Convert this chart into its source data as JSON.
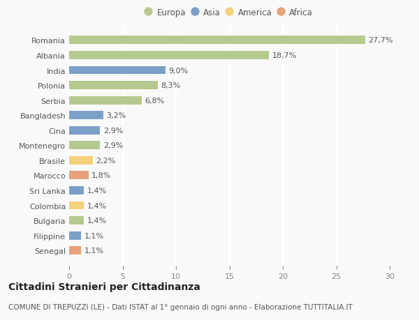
{
  "categories": [
    "Romania",
    "Albania",
    "India",
    "Polonia",
    "Serbia",
    "Bangladesh",
    "Cina",
    "Montenegro",
    "Brasile",
    "Marocco",
    "Sri Lanka",
    "Colombia",
    "Bulgaria",
    "Filippine",
    "Senegal"
  ],
  "values": [
    27.7,
    18.7,
    9.0,
    8.3,
    6.8,
    3.2,
    2.9,
    2.9,
    2.2,
    1.8,
    1.4,
    1.4,
    1.4,
    1.1,
    1.1
  ],
  "labels": [
    "27,7%",
    "18,7%",
    "9,0%",
    "8,3%",
    "6,8%",
    "3,2%",
    "2,9%",
    "2,9%",
    "2,2%",
    "1,8%",
    "1,4%",
    "1,4%",
    "1,4%",
    "1,1%",
    "1,1%"
  ],
  "continents": [
    "Europa",
    "Europa",
    "Asia",
    "Europa",
    "Europa",
    "Asia",
    "Asia",
    "Europa",
    "America",
    "Africa",
    "Asia",
    "America",
    "Europa",
    "Asia",
    "Africa"
  ],
  "colors": {
    "Europa": "#b5c98e",
    "Asia": "#7b9fc7",
    "America": "#f5d17a",
    "Africa": "#e8a07a"
  },
  "legend_labels": [
    "Europa",
    "Asia",
    "America",
    "Africa"
  ],
  "legend_colors": [
    "#b5c98e",
    "#7b9fc7",
    "#f5d17a",
    "#e8a07a"
  ],
  "xlim": [
    0,
    30
  ],
  "xticks": [
    0,
    5,
    10,
    15,
    20,
    25,
    30
  ],
  "title": "Cittadini Stranieri per Cittadinanza",
  "subtitle": "COMUNE DI TREPUZZI (LE) - Dati ISTAT al 1° gennaio di ogni anno - Elaborazione TUTTITALIA.IT",
  "background_color": "#f9f9f9",
  "bar_height": 0.55,
  "label_fontsize": 8,
  "tick_fontsize": 8,
  "title_fontsize": 10,
  "subtitle_fontsize": 7.5
}
